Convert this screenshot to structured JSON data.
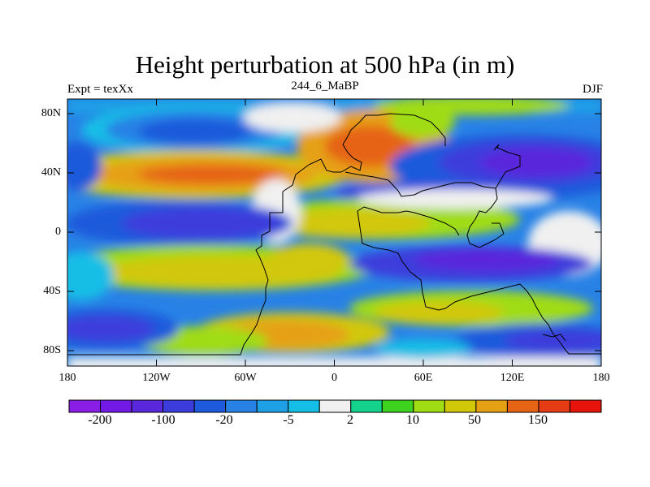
{
  "title": "Height perturbation at 500 hPa (in m)",
  "subtitle_left": "Expt = texXx",
  "subtitle_center": "244_6_MaBP",
  "subtitle_right": "DJF",
  "y_ticks": [
    "80N",
    "40N",
    "0",
    "40S",
    "80S"
  ],
  "x_ticks": [
    "180",
    "120W",
    "60W",
    "0",
    "60E",
    "120E",
    "180"
  ],
  "colorbar": {
    "colors": [
      "#8a1ee6",
      "#7319e6",
      "#5a28dc",
      "#3c3cdc",
      "#1e5adc",
      "#2882e6",
      "#1ea0e6",
      "#14bee6",
      "#f0f0f0",
      "#14d28c",
      "#3cd21e",
      "#a0dc14",
      "#d2c80a",
      "#e6a014",
      "#e66414",
      "#e63c14",
      "#e6140a"
    ],
    "labels": [
      "-200",
      "-100",
      "-20",
      "-5",
      "2",
      "10",
      "50",
      "150"
    ]
  },
  "chart_data": {
    "type": "heatmap",
    "title": "Height perturbation at 500 hPa (in m)",
    "variable": "Height perturbation at 500 hPa",
    "units": "m",
    "x_range": [
      -180,
      180
    ],
    "y_range": [
      -90,
      90
    ],
    "contour_levels": [
      -200,
      -100,
      -20,
      -5,
      2,
      10,
      50,
      150
    ],
    "features": [
      {
        "region": "North Pacific 60N",
        "sign": "negative",
        "approx_value": -100
      },
      {
        "region": "North America / N Atlantic 35N",
        "sign": "positive",
        "approx_value": 150
      },
      {
        "region": "Eurasia 40N",
        "sign": "negative",
        "approx_value": -200
      },
      {
        "region": "Southern Ocean 70S",
        "sign": "negative",
        "approx_value": -100
      },
      {
        "region": "South Atlantic 60S",
        "sign": "positive",
        "approx_value": 50
      }
    ]
  }
}
